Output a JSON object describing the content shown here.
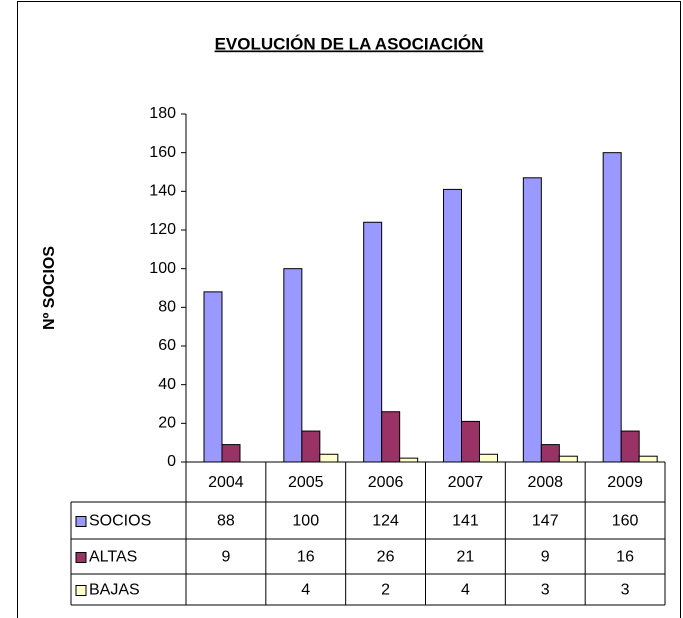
{
  "chart_data": {
    "type": "bar",
    "title": "EVOLUCIÓN DE LA ASOCIACIÓN",
    "y_label": "Nº SOCIOS",
    "categories": [
      "2004",
      "2005",
      "2006",
      "2007",
      "2008",
      "2009"
    ],
    "series": [
      {
        "name": "SOCIOS",
        "color": "#9999ff",
        "values": [
          88,
          100,
          124,
          141,
          147,
          160
        ]
      },
      {
        "name": "ALTAS",
        "color": "#993366",
        "values": [
          9,
          16,
          26,
          21,
          9,
          16
        ]
      },
      {
        "name": "BAJAS",
        "color": "#ffffcc",
        "values": [
          null,
          4,
          2,
          4,
          3,
          3
        ]
      }
    ],
    "ylim": [
      0,
      180
    ],
    "yticks": [
      0,
      20,
      40,
      60,
      80,
      100,
      120,
      140,
      160,
      180
    ],
    "grid": false,
    "data_table": true
  }
}
